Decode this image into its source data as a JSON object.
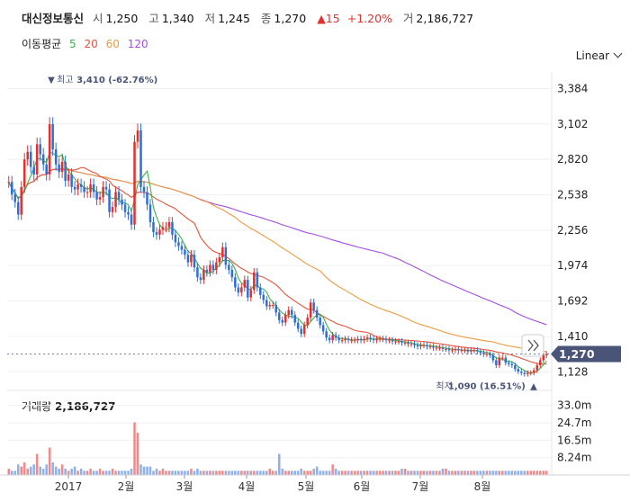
{
  "header": {
    "name": "대신정보통신",
    "open_label": "시",
    "open": "1,250",
    "high_label": "고",
    "high": "1,340",
    "low_label": "저",
    "low": "1,245",
    "close_label": "종",
    "close": "1,270",
    "change": "▲15",
    "change_pct": "+1.20%",
    "volume_label": "거",
    "volume": "2,186,727"
  },
  "ma_legend": {
    "label": "이동평균",
    "items": [
      {
        "text": "5",
        "color": "#3bb34a"
      },
      {
        "text": "20",
        "color": "#e8533a"
      },
      {
        "text": "60",
        "color": "#f09a3e"
      },
      {
        "text": "120",
        "color": "#a34ee6"
      }
    ]
  },
  "scale_button": "Linear",
  "volume_panel": {
    "label": "거래량",
    "value": "2,186,727"
  },
  "colors": {
    "up": "#e0312f",
    "down": "#2f6fd6",
    "badge": "#4a5478",
    "ma5": "#3bb34a",
    "ma20": "#e8533a",
    "ma60": "#f09a3e",
    "ma120": "#a34ee6",
    "vol_up": "#f08a8a",
    "vol_down": "#8fb0ea"
  },
  "chart_data": {
    "type": "candlestick",
    "y_ticks": [
      "3,384",
      "3,102",
      "2,820",
      "2,538",
      "2,256",
      "1,974",
      "1,692",
      "1,410",
      "1,128"
    ],
    "y_tick_values": [
      3384,
      3102,
      2820,
      2538,
      2256,
      1974,
      1692,
      1410,
      1128
    ],
    "ylim": [
      1080,
      3480
    ],
    "x_ticks": [
      "2017",
      "2월",
      "3월",
      "4월",
      "5월",
      "6월",
      "7월",
      "8월"
    ],
    "last_price_label": "1,270",
    "high_annotation": {
      "prefix": "최고",
      "value": "3,410 (-62.76%)",
      "price": 3410
    },
    "low_annotation": {
      "prefix": "최저",
      "value": "1,090 (16.51%)",
      "price": 1090
    },
    "volume_ticks": [
      "33.0m",
      "24.7m",
      "16.5m",
      "8.24m"
    ],
    "volume_tick_values": [
      33.0,
      24.7,
      16.5,
      8.24
    ],
    "volume_ylim": [
      0,
      35
    ],
    "closes": [
      2640,
      2540,
      2480,
      2380,
      2600,
      2820,
      2880,
      2760,
      2700,
      2940,
      2860,
      2780,
      2700,
      3100,
      2900,
      2780,
      2720,
      2800,
      2650,
      2700,
      2600,
      2580,
      2620,
      2600,
      2560,
      2560,
      2620,
      2560,
      2500,
      2520,
      2600,
      2580,
      2400,
      2440,
      2560,
      2500,
      2460,
      2400,
      2380,
      2300,
      2960,
      3050,
      2600,
      2560,
      2460,
      2320,
      2240,
      2220,
      2260,
      2280,
      2280,
      2320,
      2220,
      2160,
      2130,
      2100,
      2060,
      2000,
      2060,
      1960,
      1880,
      1860,
      1940,
      1920,
      1980,
      1940,
      2000,
      2040,
      2120,
      1980,
      1940,
      1880,
      1800,
      1760,
      1800,
      1860,
      1720,
      1780,
      1920,
      1800,
      1740,
      1700,
      1650,
      1660,
      1660,
      1600,
      1540,
      1520,
      1580,
      1620,
      1580,
      1520,
      1470,
      1430,
      1500,
      1560,
      1680,
      1620,
      1560,
      1500,
      1450,
      1400,
      1380,
      1420,
      1400,
      1380,
      1380,
      1390,
      1380,
      1380,
      1380,
      1390,
      1380,
      1390,
      1400,
      1390,
      1380,
      1390,
      1390,
      1390,
      1380,
      1380,
      1370,
      1370,
      1370,
      1360,
      1360,
      1350,
      1350,
      1340,
      1330,
      1340,
      1340,
      1330,
      1330,
      1320,
      1320,
      1320,
      1310,
      1310,
      1300,
      1300,
      1310,
      1300,
      1300,
      1300,
      1290,
      1300,
      1300,
      1290,
      1280,
      1270,
      1270,
      1260,
      1220,
      1180,
      1240,
      1240,
      1200,
      1190,
      1180,
      1150,
      1130,
      1120,
      1110,
      1120,
      1120,
      1140,
      1180,
      1220,
      1260,
      1270
    ],
    "volumes": [
      3,
      2,
      2,
      5,
      4,
      6,
      3,
      4,
      5,
      10,
      4,
      3,
      5,
      13,
      6,
      4,
      3,
      5,
      3,
      2,
      3,
      4,
      2,
      3,
      2,
      2,
      3,
      2,
      2,
      3,
      2,
      2,
      2,
      3,
      2,
      2,
      2,
      2,
      2,
      3,
      25,
      20,
      5,
      4,
      4,
      4,
      2,
      3,
      2,
      3,
      2,
      2,
      2,
      2,
      2,
      2,
      2,
      2,
      3,
      2,
      3,
      2,
      2,
      2,
      2,
      2,
      2,
      2,
      2,
      2,
      2,
      2,
      2,
      2,
      2,
      2,
      2,
      2,
      2,
      2,
      2,
      2,
      2,
      3,
      2,
      2,
      10,
      3,
      2,
      2,
      2,
      2,
      2,
      3,
      2,
      2,
      2,
      3,
      4,
      2,
      2,
      2,
      2,
      5,
      3,
      2,
      2,
      2,
      2,
      2,
      2,
      2,
      2,
      2,
      2,
      2,
      2,
      2,
      2,
      2,
      2,
      2,
      2,
      2,
      2,
      3,
      3,
      2,
      2,
      2,
      2,
      2,
      2,
      2,
      2,
      2,
      2,
      2,
      3,
      3,
      2,
      2,
      2,
      2,
      2,
      2,
      2,
      2,
      2,
      2,
      2,
      2,
      2,
      2,
      2,
      2,
      2,
      2,
      2,
      2,
      2,
      2,
      2,
      2,
      2,
      2,
      2,
      2,
      2,
      2,
      2,
      2,
      2,
      7,
      4,
      3,
      2
    ]
  }
}
